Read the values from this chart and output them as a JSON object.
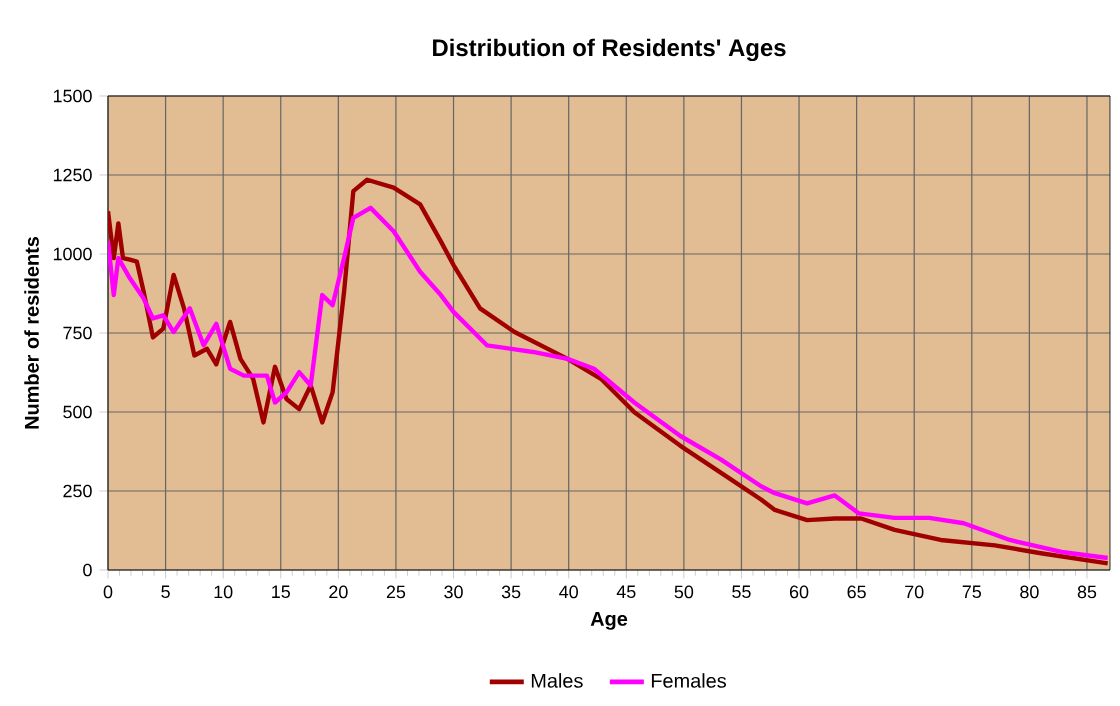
{
  "chart_data": {
    "type": "line",
    "title": "Distribution of Residents' Ages",
    "xlabel": "Age",
    "ylabel": "Number of residents",
    "xlim": [
      0,
      87
    ],
    "xticks": [
      0,
      5,
      10,
      15,
      20,
      25,
      30,
      35,
      40,
      45,
      50,
      55,
      60,
      65,
      70,
      75,
      80,
      85
    ],
    "ylim": [
      0,
      1500
    ],
    "yticks": [
      0,
      250,
      500,
      750,
      1000,
      1250,
      1500
    ],
    "grid": true,
    "legend": "bottom",
    "marker": "none",
    "line_style": "solid",
    "series": [
      {
        "name": "Males",
        "color": "#a00000",
        "x": [
          0,
          0.5,
          0.9,
          1.3,
          1.9,
          2.5,
          3.1,
          3.9,
          4.8,
          5.7,
          6.6,
          7.5,
          8.6,
          9.4,
          10.6,
          11.5,
          12.6,
          13.5,
          14.5,
          15.5,
          16.6,
          17.6,
          18.6,
          19.5,
          20.5,
          21.3,
          22.5,
          24.8,
          27.1,
          28.9,
          30.0,
          32.3,
          35.3,
          39.9,
          42.8,
          45.7,
          49.7,
          53.2,
          56.7,
          57.9,
          60.7,
          63.1,
          65.4,
          68.3,
          72.3,
          77.0,
          81.0,
          86.8
        ],
        "values": [
          1135,
          987,
          1097,
          987,
          982,
          976,
          880,
          736,
          764,
          934,
          828,
          679,
          700,
          651,
          785,
          668,
          605,
          467,
          643,
          541,
          509,
          584,
          467,
          562,
          881,
          1199,
          1235,
          1210,
          1157,
          1040,
          965,
          828,
          753,
          668,
          605,
          499,
          393,
          308,
          223,
          190,
          158,
          163,
          163,
          127,
          95,
          78,
          53,
          21
        ]
      },
      {
        "name": "Females",
        "color": "#ff00ff",
        "x": [
          0,
          0.5,
          0.9,
          1.9,
          3.1,
          3.9,
          4.8,
          5.7,
          7.1,
          8.3,
          9.4,
          10.6,
          11.8,
          12.9,
          13.8,
          14.5,
          15.5,
          16.6,
          17.6,
          18.6,
          19.5,
          20.5,
          21.3,
          22.8,
          24.8,
          27.1,
          28.9,
          30.0,
          32.9,
          36.9,
          39.9,
          42.2,
          45.7,
          49.7,
          53.2,
          56.7,
          57.9,
          60.7,
          63.1,
          65.2,
          68.3,
          71.3,
          74.3,
          78.3,
          82.8,
          86.8
        ],
        "values": [
          1040,
          870,
          987,
          923,
          859,
          796,
          806,
          753,
          828,
          711,
          779,
          637,
          615,
          615,
          615,
          530,
          562,
          626,
          584,
          870,
          838,
          987,
          1114,
          1146,
          1072,
          944,
          870,
          817,
          711,
          690,
          668,
          637,
          530,
          424,
          350,
          265,
          243,
          211,
          236,
          179,
          165,
          165,
          148,
          95,
          57,
          38
        ]
      }
    ]
  }
}
